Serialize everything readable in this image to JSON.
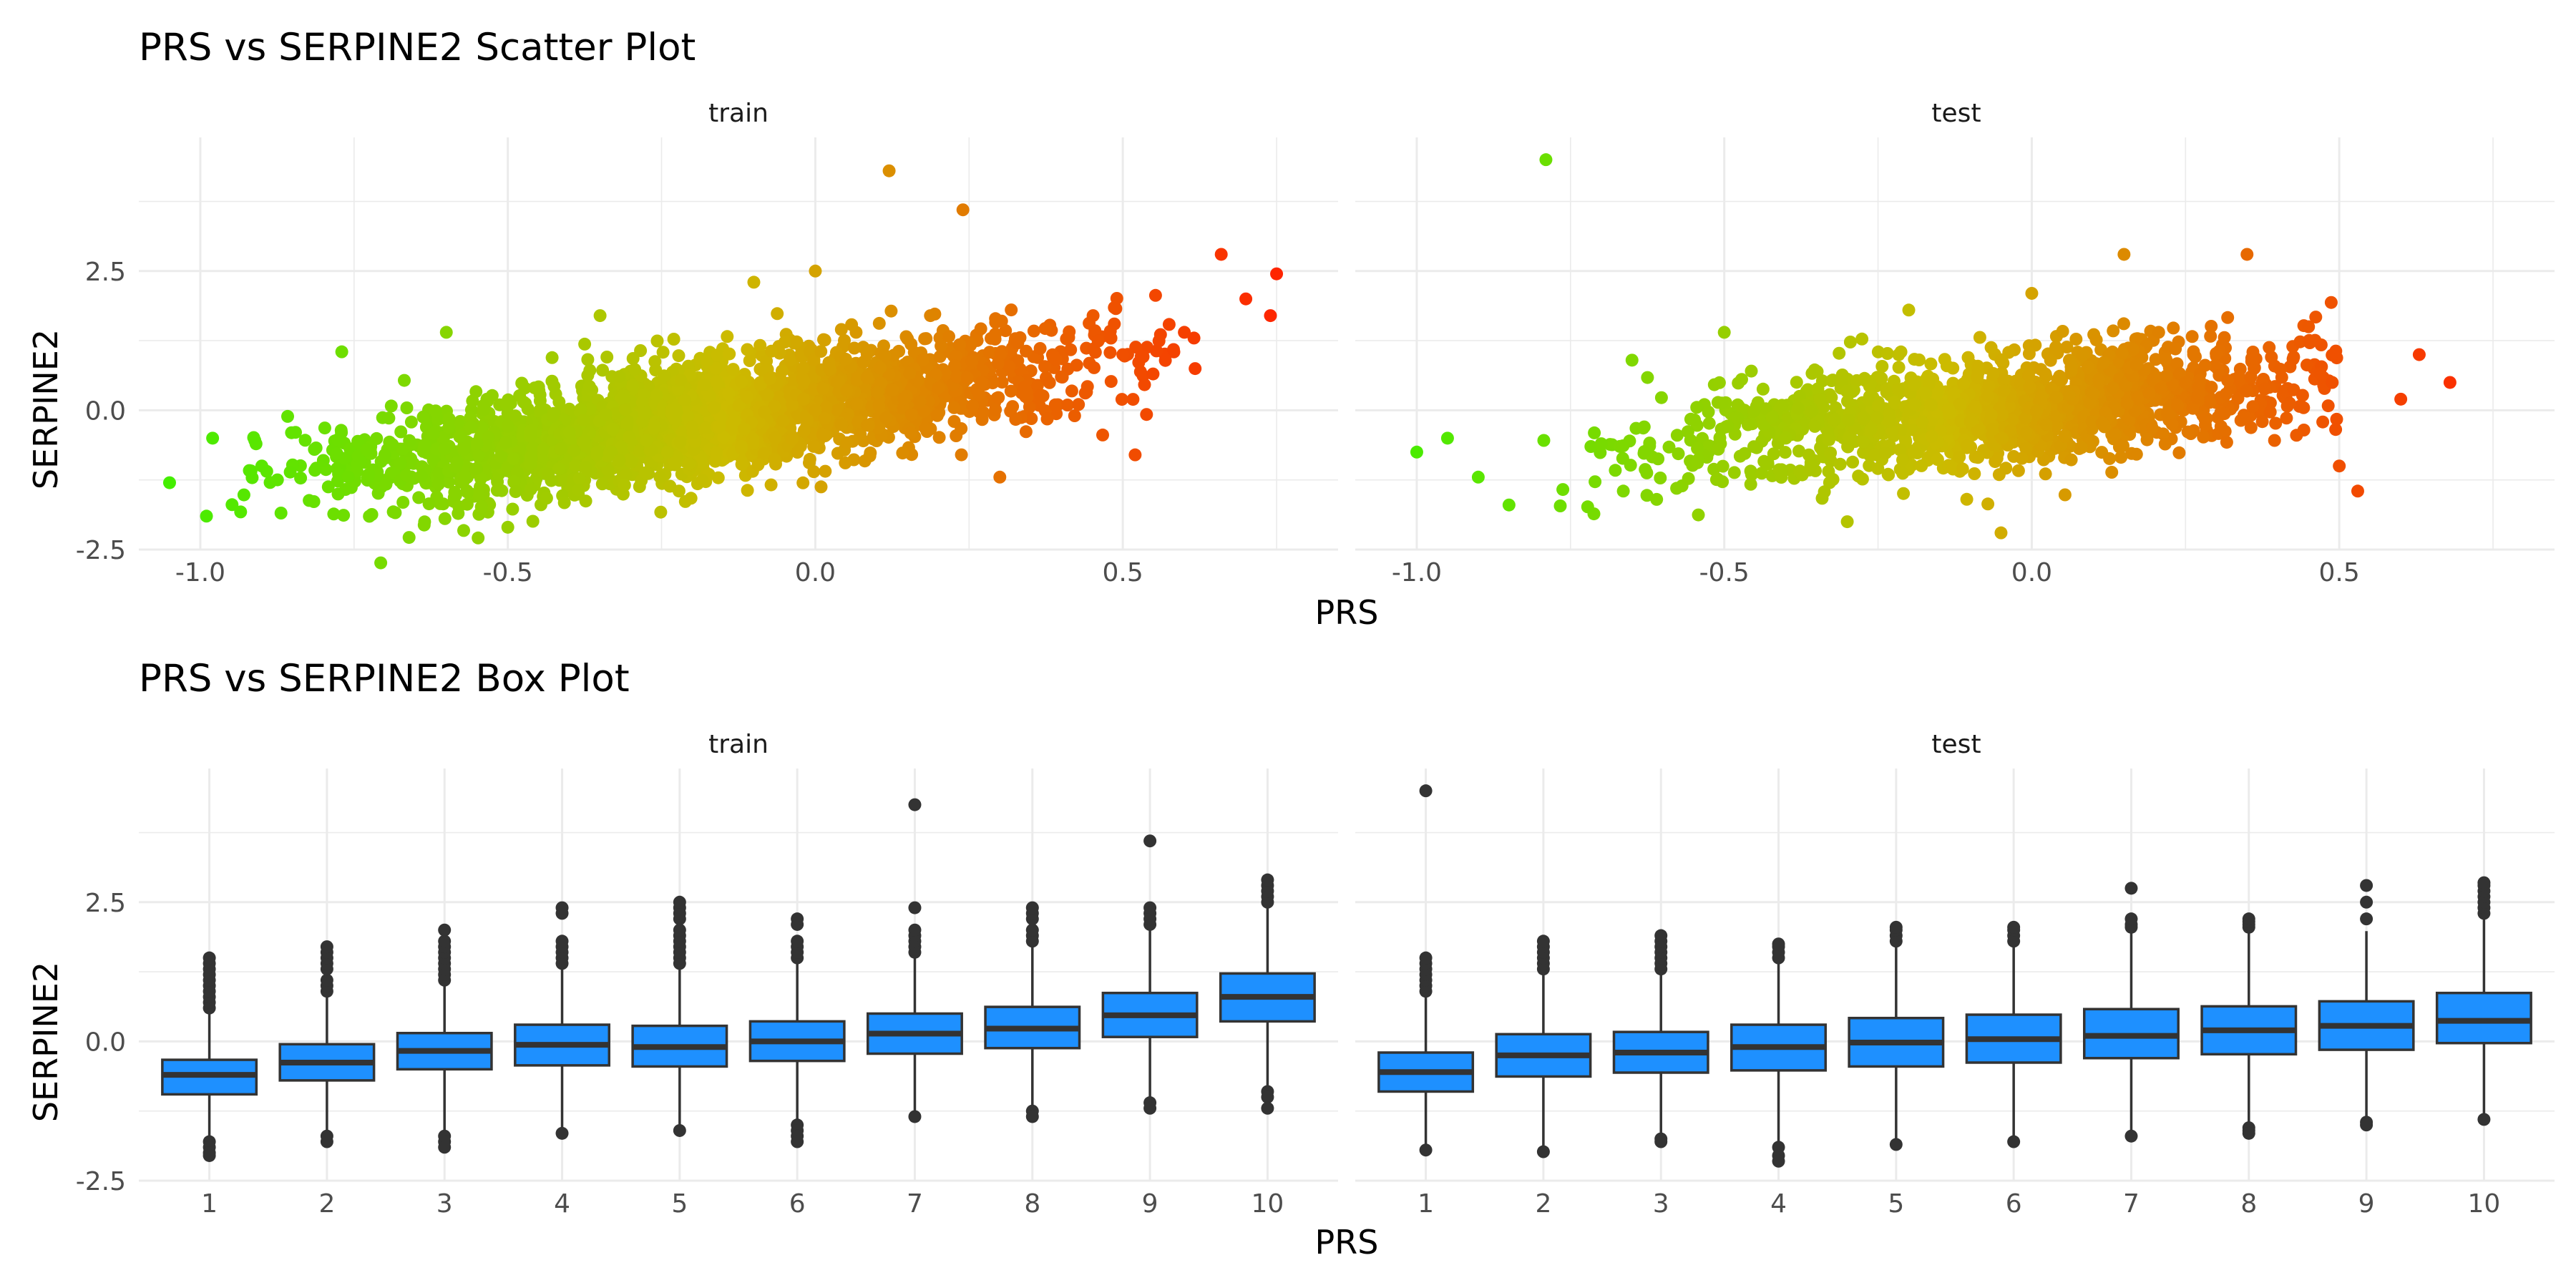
{
  "chart_data": [
    {
      "type": "scatter",
      "title": "PRS vs SERPINE2 Scatter Plot",
      "xlabel": "PRS",
      "ylabel": "SERPINE2",
      "xlim": [
        -1.1,
        0.85
      ],
      "ylim": [
        -2.5,
        4.9
      ],
      "x_ticks": [
        -1.0,
        -0.5,
        0.0,
        0.5
      ],
      "x_tick_labels": [
        "-1.0",
        "-0.5",
        "0.0",
        "0.5"
      ],
      "y_ticks": [
        -2.5,
        0.0,
        2.5
      ],
      "y_tick_labels": [
        "-2.5",
        "0.0",
        "2.5"
      ],
      "color_scale": {
        "low": "#44ee00",
        "mid": "#ccbb00",
        "high": "#ff2200"
      },
      "grid": true,
      "panels": [
        {
          "name": "train",
          "summary_points": [
            {
              "x": -1.05,
              "y": -1.3
            },
            {
              "x": -0.99,
              "y": -1.9
            },
            {
              "x": -0.98,
              "y": -0.5
            },
            {
              "x": -0.9,
              "y": -1.0
            },
            {
              "x": -0.8,
              "y": -0.9
            },
            {
              "x": -0.77,
              "y": 1.05
            },
            {
              "x": -0.7,
              "y": -0.8
            },
            {
              "x": -0.6,
              "y": 1.4
            },
            {
              "x": -0.55,
              "y": -0.6
            },
            {
              "x": -0.5,
              "y": -2.1
            },
            {
              "x": -0.4,
              "y": -0.4
            },
            {
              "x": -0.35,
              "y": 1.7
            },
            {
              "x": -0.2,
              "y": -0.3
            },
            {
              "x": -0.1,
              "y": 2.3
            },
            {
              "x": 0.0,
              "y": 0.0
            },
            {
              "x": 0.0,
              "y": 2.5
            },
            {
              "x": 0.12,
              "y": 4.3
            },
            {
              "x": 0.2,
              "y": 0.4
            },
            {
              "x": 0.24,
              "y": 3.6
            },
            {
              "x": 0.3,
              "y": -1.2
            },
            {
              "x": 0.4,
              "y": 0.6
            },
            {
              "x": 0.5,
              "y": 1.0
            },
            {
              "x": 0.52,
              "y": -0.8
            },
            {
              "x": 0.6,
              "y": 1.4
            },
            {
              "x": 0.66,
              "y": 2.8
            },
            {
              "x": 0.7,
              "y": 2.0
            },
            {
              "x": 0.74,
              "y": 1.7
            },
            {
              "x": 0.75,
              "y": 2.45
            }
          ]
        },
        {
          "name": "test",
          "summary_points": [
            {
              "x": -1.0,
              "y": -0.75
            },
            {
              "x": -0.95,
              "y": -0.5
            },
            {
              "x": -0.9,
              "y": -1.2
            },
            {
              "x": -0.85,
              "y": -1.7
            },
            {
              "x": -0.79,
              "y": 4.5
            },
            {
              "x": -0.7,
              "y": -0.6
            },
            {
              "x": -0.65,
              "y": 0.9
            },
            {
              "x": -0.5,
              "y": 1.4
            },
            {
              "x": -0.4,
              "y": -0.5
            },
            {
              "x": -0.3,
              "y": -2.0
            },
            {
              "x": -0.2,
              "y": 1.8
            },
            {
              "x": -0.1,
              "y": -0.2
            },
            {
              "x": -0.05,
              "y": -2.2
            },
            {
              "x": 0.0,
              "y": 2.1
            },
            {
              "x": 0.1,
              "y": 0.3
            },
            {
              "x": 0.15,
              "y": 2.8
            },
            {
              "x": 0.25,
              "y": 0.5
            },
            {
              "x": 0.35,
              "y": 2.8
            },
            {
              "x": 0.45,
              "y": 1.5
            },
            {
              "x": 0.5,
              "y": -1.0
            },
            {
              "x": 0.53,
              "y": -1.45
            },
            {
              "x": 0.6,
              "y": 0.2
            },
            {
              "x": 0.63,
              "y": 1.0
            },
            {
              "x": 0.68,
              "y": 0.5
            }
          ]
        }
      ]
    },
    {
      "type": "box",
      "title": "PRS vs SERPINE2 Box Plot",
      "xlabel": "PRS",
      "ylabel": "SERPINE2",
      "categories": [
        "1",
        "2",
        "3",
        "4",
        "5",
        "6",
        "7",
        "8",
        "9",
        "10"
      ],
      "ylim": [
        -2.5,
        4.9
      ],
      "y_ticks": [
        -2.5,
        0.0,
        2.5
      ],
      "y_tick_labels": [
        "-2.5",
        "0.0",
        "2.5"
      ],
      "box_color": "#1e90ff",
      "outline_color": "#333333",
      "grid": true,
      "panels": [
        {
          "name": "train",
          "boxes": [
            {
              "q1": -0.95,
              "median": -0.6,
              "q3": -0.33,
              "whisker_low": -1.7,
              "whisker_high": 0.55,
              "outliers": [
                -1.8,
                -1.9,
                -2.0,
                -2.05,
                0.6,
                0.7,
                0.8,
                0.9,
                1.0,
                1.1,
                1.2,
                1.3,
                1.4,
                1.5
              ]
            },
            {
              "q1": -0.7,
              "median": -0.38,
              "q3": -0.05,
              "whisker_low": -1.6,
              "whisker_high": 0.85,
              "outliers": [
                -1.7,
                -1.8,
                0.9,
                1.0,
                1.1,
                1.3,
                1.4,
                1.5,
                1.6,
                1.7
              ]
            },
            {
              "q1": -0.5,
              "median": -0.17,
              "q3": 0.15,
              "whisker_low": -1.65,
              "whisker_high": 1.0,
              "outliers": [
                -1.7,
                -1.8,
                -1.9,
                1.1,
                1.2,
                1.3,
                1.4,
                1.5,
                1.6,
                1.7,
                1.8,
                2.0
              ]
            },
            {
              "q1": -0.43,
              "median": -0.06,
              "q3": 0.3,
              "whisker_low": -1.55,
              "whisker_high": 1.35,
              "outliers": [
                -1.65,
                1.4,
                1.5,
                1.6,
                1.7,
                1.8,
                2.3,
                2.4
              ]
            },
            {
              "q1": -0.45,
              "median": -0.1,
              "q3": 0.28,
              "whisker_low": -1.5,
              "whisker_high": 1.3,
              "outliers": [
                -1.6,
                1.4,
                1.5,
                1.6,
                1.7,
                1.8,
                1.9,
                2.0,
                2.2,
                2.3,
                2.4,
                2.5
              ]
            },
            {
              "q1": -0.35,
              "median": 0.0,
              "q3": 0.36,
              "whisker_low": -1.4,
              "whisker_high": 1.4,
              "outliers": [
                -1.5,
                -1.6,
                -1.7,
                -1.8,
                1.5,
                1.6,
                1.7,
                1.8,
                2.1,
                2.2
              ]
            },
            {
              "q1": -0.22,
              "median": 0.14,
              "q3": 0.5,
              "whisker_low": -1.3,
              "whisker_high": 1.5,
              "outliers": [
                -1.35,
                1.6,
                1.7,
                1.8,
                1.9,
                2.0,
                2.4,
                4.25
              ]
            },
            {
              "q1": -0.12,
              "median": 0.23,
              "q3": 0.62,
              "whisker_low": -1.2,
              "whisker_high": 1.7,
              "outliers": [
                -1.25,
                -1.35,
                1.8,
                1.9,
                2.0,
                2.2,
                2.3,
                2.4
              ]
            },
            {
              "q1": 0.08,
              "median": 0.47,
              "q3": 0.87,
              "whisker_low": -1.05,
              "whisker_high": 2.05,
              "outliers": [
                -1.1,
                -1.2,
                2.1,
                2.2,
                2.3,
                2.4,
                3.6
              ]
            },
            {
              "q1": 0.36,
              "median": 0.8,
              "q3": 1.22,
              "whisker_low": -0.85,
              "whisker_high": 2.45,
              "outliers": [
                -0.9,
                -1.0,
                -1.2,
                2.5,
                2.6,
                2.7,
                2.8,
                2.9
              ]
            }
          ]
        },
        {
          "name": "test",
          "boxes": [
            {
              "q1": -0.9,
              "median": -0.55,
              "q3": -0.2,
              "whisker_low": -1.85,
              "whisker_high": 0.8,
              "outliers": [
                -1.95,
                0.9,
                1.0,
                1.1,
                1.2,
                1.3,
                1.4,
                1.5,
                4.5
              ]
            },
            {
              "q1": -0.63,
              "median": -0.25,
              "q3": 0.13,
              "whisker_low": -1.9,
              "whisker_high": 1.25,
              "outliers": [
                -1.98,
                1.3,
                1.4,
                1.5,
                1.6,
                1.7,
                1.8
              ]
            },
            {
              "q1": -0.56,
              "median": -0.2,
              "q3": 0.17,
              "whisker_low": -1.7,
              "whisker_high": 1.2,
              "outliers": [
                -1.75,
                -1.8,
                1.3,
                1.4,
                1.5,
                1.6,
                1.7,
                1.8,
                1.9
              ]
            },
            {
              "q1": -0.52,
              "median": -0.1,
              "q3": 0.3,
              "whisker_low": -1.85,
              "whisker_high": 1.45,
              "outliers": [
                -1.9,
                -2.05,
                -2.15,
                1.5,
                1.6,
                1.7,
                1.75
              ]
            },
            {
              "q1": -0.45,
              "median": -0.02,
              "q3": 0.42,
              "whisker_low": -1.75,
              "whisker_high": 1.7,
              "outliers": [
                -1.85,
                1.8,
                1.9,
                2.0,
                2.05
              ]
            },
            {
              "q1": -0.38,
              "median": 0.04,
              "q3": 0.48,
              "whisker_low": -1.75,
              "whisker_high": 1.7,
              "outliers": [
                -1.8,
                1.8,
                1.9,
                2.0,
                2.05
              ]
            },
            {
              "q1": -0.3,
              "median": 0.1,
              "q3": 0.58,
              "whisker_low": -1.65,
              "whisker_high": 1.95,
              "outliers": [
                -1.7,
                2.05,
                2.1,
                2.2,
                2.75
              ]
            },
            {
              "q1": -0.23,
              "median": 0.2,
              "q3": 0.63,
              "whisker_low": -1.5,
              "whisker_high": 1.95,
              "outliers": [
                -1.55,
                -1.6,
                -1.65,
                2.05,
                2.1,
                2.15,
                2.2
              ]
            },
            {
              "q1": -0.15,
              "median": 0.28,
              "q3": 0.72,
              "whisker_low": -1.4,
              "whisker_high": 1.98,
              "outliers": [
                -1.45,
                -1.5,
                2.2,
                2.5,
                2.8
              ]
            },
            {
              "q1": -0.03,
              "median": 0.37,
              "q3": 0.87,
              "whisker_low": -1.35,
              "whisker_high": 2.2,
              "outliers": [
                -1.4,
                2.3,
                2.4,
                2.5,
                2.6,
                2.7,
                2.8,
                2.85
              ]
            }
          ]
        }
      ]
    }
  ]
}
